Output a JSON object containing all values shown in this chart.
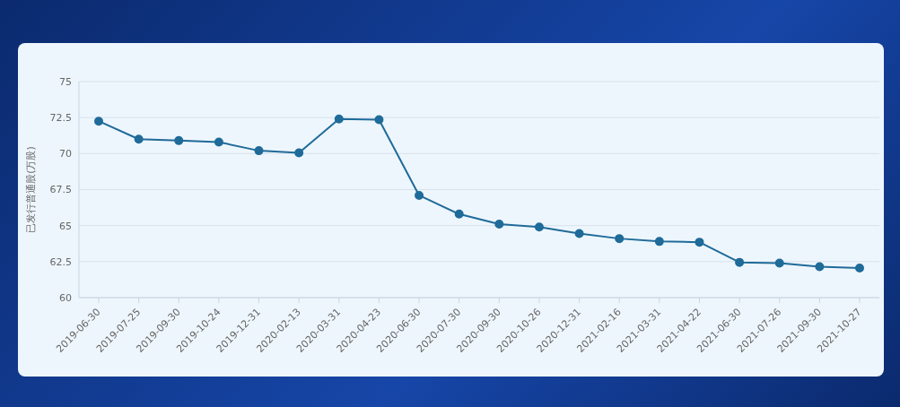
{
  "chart_data": {
    "type": "line",
    "ylabel": "已发行普通股(万股)",
    "categories": [
      "2019-06-30",
      "2019-07-25",
      "2019-09-30",
      "2019-10-24",
      "2019-12-31",
      "2020-02-13",
      "2020-03-31",
      "2020-04-23",
      "2020-06-30",
      "2020-07-30",
      "2020-09-30",
      "2020-10-26",
      "2020-12-31",
      "2021-02-16",
      "2021-03-31",
      "2021-04-22",
      "2021-06-30",
      "2021-07-26",
      "2021-09-30",
      "2021-10-27"
    ],
    "series": [
      {
        "color": "#1f6b99",
        "values": [
          72.25,
          71.0,
          70.9,
          70.8,
          70.2,
          70.05,
          72.4,
          72.35,
          67.1,
          65.8,
          65.1,
          64.9,
          64.45,
          64.1,
          63.9,
          63.85,
          62.45,
          62.4,
          62.15,
          62.05
        ]
      }
    ],
    "ylim": [
      60,
      75
    ],
    "yticks": [
      60,
      62.5,
      65,
      67.5,
      70,
      72.5,
      75
    ],
    "grid": "y",
    "marker": "circle",
    "line_style": "solid"
  }
}
